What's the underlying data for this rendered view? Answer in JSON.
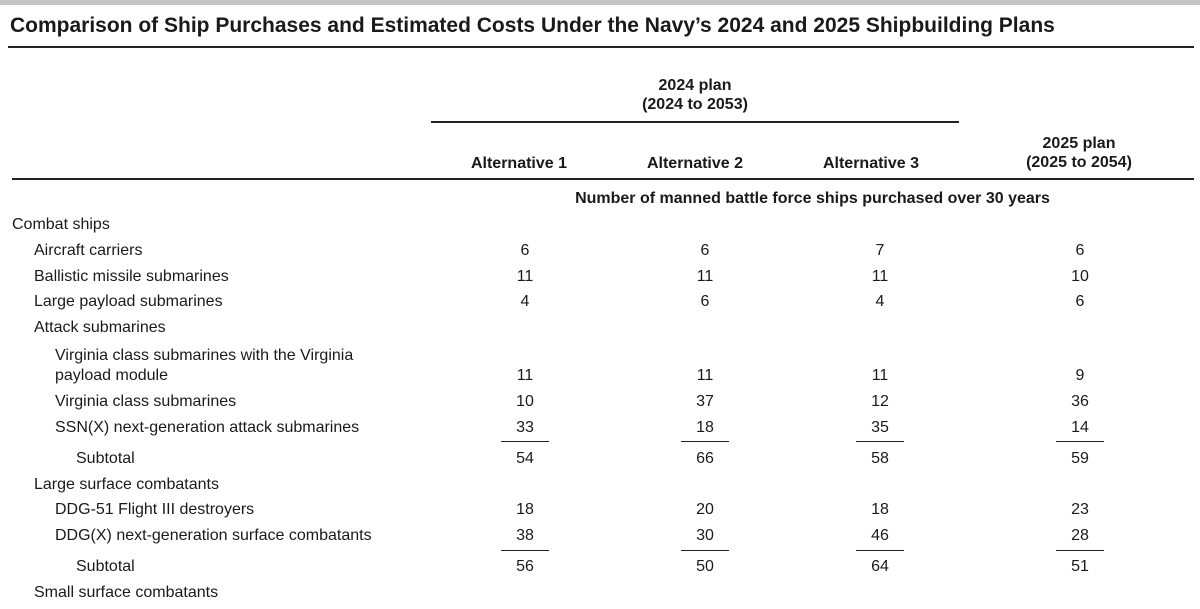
{
  "title": "Comparison of Ship Purchases and Estimated Costs Under the Navy’s 2024 and 2025 Shipbuilding Plans",
  "header": {
    "plan_2024_line1": "2024 plan",
    "plan_2024_line2": "(2024 to 2053)",
    "plan_2025_line1": "2025 plan",
    "plan_2025_line2": "(2025 to 2054)",
    "alt1": "Alternative 1",
    "alt2": "Alternative 2",
    "alt3": "Alternative 3",
    "units": "Number of manned battle force ships purchased over 30 years"
  },
  "rows": {
    "combat_ships": {
      "label": "Combat ships"
    },
    "aircraft_carriers": {
      "label": "Aircraft carriers",
      "v1": "6",
      "v2": "6",
      "v3": "7",
      "v4": "6"
    },
    "ballistic_subs": {
      "label": "Ballistic missile submarines",
      "v1": "11",
      "v2": "11",
      "v3": "11",
      "v4": "10"
    },
    "large_payload_subs": {
      "label": "Large payload submarines",
      "v1": "4",
      "v2": "6",
      "v3": "4",
      "v4": "6"
    },
    "attack_subs": {
      "label": "Attack submarines"
    },
    "virginia_vpm": {
      "label_line1": "Virginia class submarines with the Virginia",
      "label_line2": "payload module",
      "v1": "11",
      "v2": "11",
      "v3": "11",
      "v4": "9"
    },
    "virginia": {
      "label": "Virginia class submarines",
      "v1": "10",
      "v2": "37",
      "v3": "12",
      "v4": "36"
    },
    "ssnx": {
      "label": "SSN(X) next-generation attack submarines",
      "v1": "33",
      "v2": "18",
      "v3": "35",
      "v4": "14"
    },
    "subtotal_subs": {
      "label": "Subtotal",
      "v1": "54",
      "v2": "66",
      "v3": "58",
      "v4": "59"
    },
    "large_surface": {
      "label": "Large surface combatants"
    },
    "ddg51": {
      "label": "DDG-51 Flight III destroyers",
      "v1": "18",
      "v2": "20",
      "v3": "18",
      "v4": "23"
    },
    "ddgx": {
      "label": "DDG(X) next-generation surface combatants",
      "v1": "38",
      "v2": "30",
      "v3": "46",
      "v4": "28"
    },
    "subtotal_surface": {
      "label": "Subtotal",
      "v1": "56",
      "v2": "50",
      "v3": "64",
      "v4": "51"
    },
    "small_surface": {
      "label": "Small surface combatants"
    }
  }
}
